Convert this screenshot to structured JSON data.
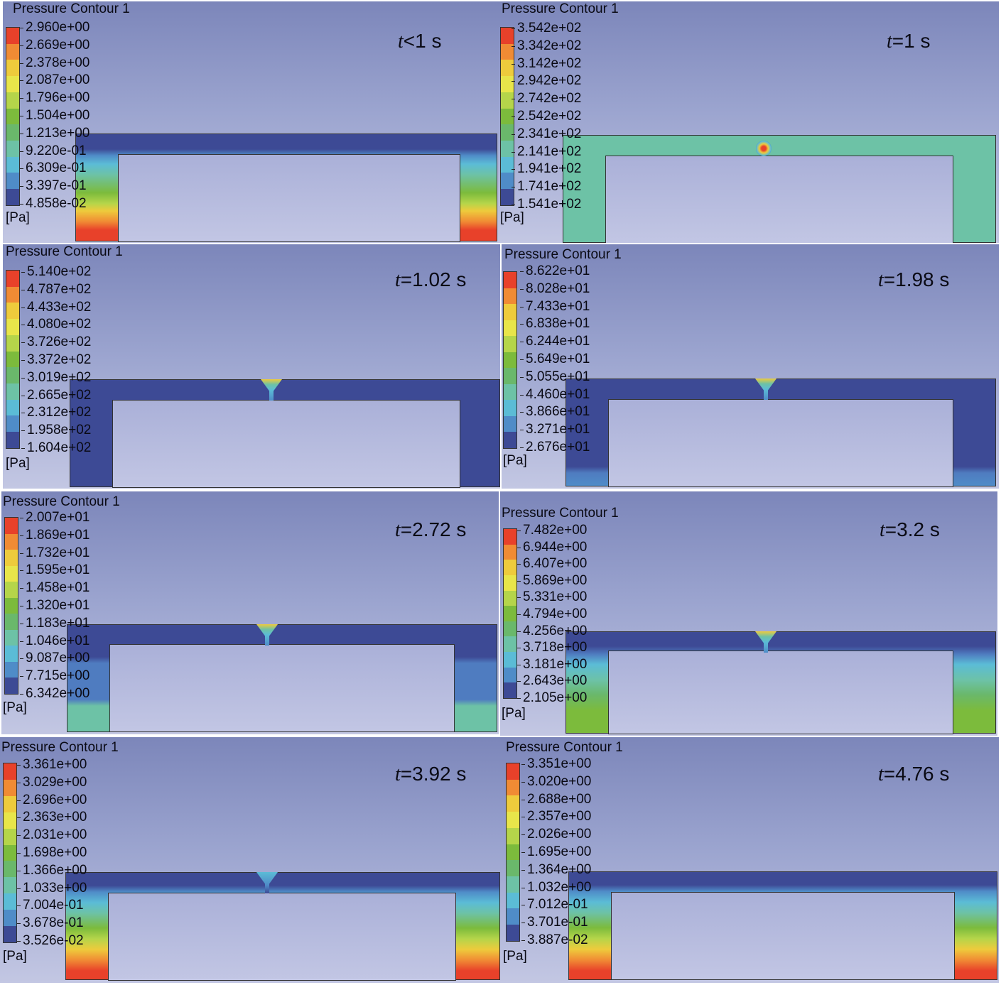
{
  "unit": "[Pa]",
  "legend_colors": [
    "#e8412a",
    "#f08b34",
    "#eecb3c",
    "#e8e54a",
    "#b5d54a",
    "#7cbb3c",
    "#6ab86b",
    "#6dc2a6",
    "#5bbcd6",
    "#4f8cc8",
    "#3d4a95"
  ],
  "panels": [
    {
      "title": "Pressure Contour 1",
      "time_var": "t",
      "time_rest": "<1 s",
      "legend": [
        "2.960e+00",
        "2.669e+00",
        "2.378e+00",
        "2.087e+00",
        "1.796e+00",
        "1.504e+00",
        "1.213e+00",
        "9.220e-01",
        "6.309e-01",
        "3.397e-01",
        "4.858e-02"
      ]
    },
    {
      "title": "Pressure Contour 1",
      "time_var": "t",
      "time_rest": "=1 s",
      "legend": [
        "3.542e+02",
        "3.342e+02",
        "3.142e+02",
        "2.942e+02",
        "2.742e+02",
        "2.542e+02",
        "2.341e+02",
        "2.141e+02",
        "1.941e+02",
        "1.741e+02",
        "1.541e+02"
      ]
    },
    {
      "title": "Pressure Contour 1",
      "time_var": "t",
      "time_rest": "=1.02 s",
      "legend": [
        "5.140e+02",
        "4.787e+02",
        "4.433e+02",
        "4.080e+02",
        "3.726e+02",
        "3.372e+02",
        "3.019e+02",
        "2.665e+02",
        "2.312e+02",
        "1.958e+02",
        "1.604e+02"
      ]
    },
    {
      "title": "Pressure Contour 1",
      "time_var": "t",
      "time_rest": "=1.98 s",
      "legend": [
        "8.622e+01",
        "8.028e+01",
        "7.433e+01",
        "6.838e+01",
        "6.244e+01",
        "5.649e+01",
        "5.055e+01",
        "4.460e+01",
        "3.866e+01",
        "3.271e+01",
        "2.676e+01"
      ]
    },
    {
      "title": "Pressure Contour 1",
      "time_var": "t",
      "time_rest": "=2.72 s",
      "legend": [
        "2.007e+01",
        "1.869e+01",
        "1.732e+01",
        "1.595e+01",
        "1.458e+01",
        "1.320e+01",
        "1.183e+01",
        "1.046e+01",
        "9.087e+00",
        "7.715e+00",
        "6.342e+00"
      ]
    },
    {
      "title": "Pressure Contour 1",
      "time_var": "t",
      "time_rest": "=3.2 s",
      "legend": [
        "7.482e+00",
        "6.944e+00",
        "6.407e+00",
        "5.869e+00",
        "5.331e+00",
        "4.794e+00",
        "4.256e+00",
        "3.718e+00",
        "3.181e+00",
        "2.643e+00",
        "2.105e+00"
      ]
    },
    {
      "title": "Pressure Contour 1",
      "time_var": "t",
      "time_rest": "=3.92 s",
      "legend": [
        "3.361e+00",
        "3.029e+00",
        "2.696e+00",
        "2.363e+00",
        "2.031e+00",
        "1.698e+00",
        "1.366e+00",
        "1.033e+00",
        "7.004e-01",
        "3.678e-01",
        "3.526e-02"
      ]
    },
    {
      "title": "Pressure Contour 1",
      "time_var": "t",
      "time_rest": "=4.76 s",
      "legend": [
        "3.351e+00",
        "3.020e+00",
        "2.688e+00",
        "2.357e+00",
        "2.026e+00",
        "1.695e+00",
        "1.364e+00",
        "1.032e+00",
        "7.012e-01",
        "3.701e-01",
        "3.887e-02"
      ]
    }
  ]
}
